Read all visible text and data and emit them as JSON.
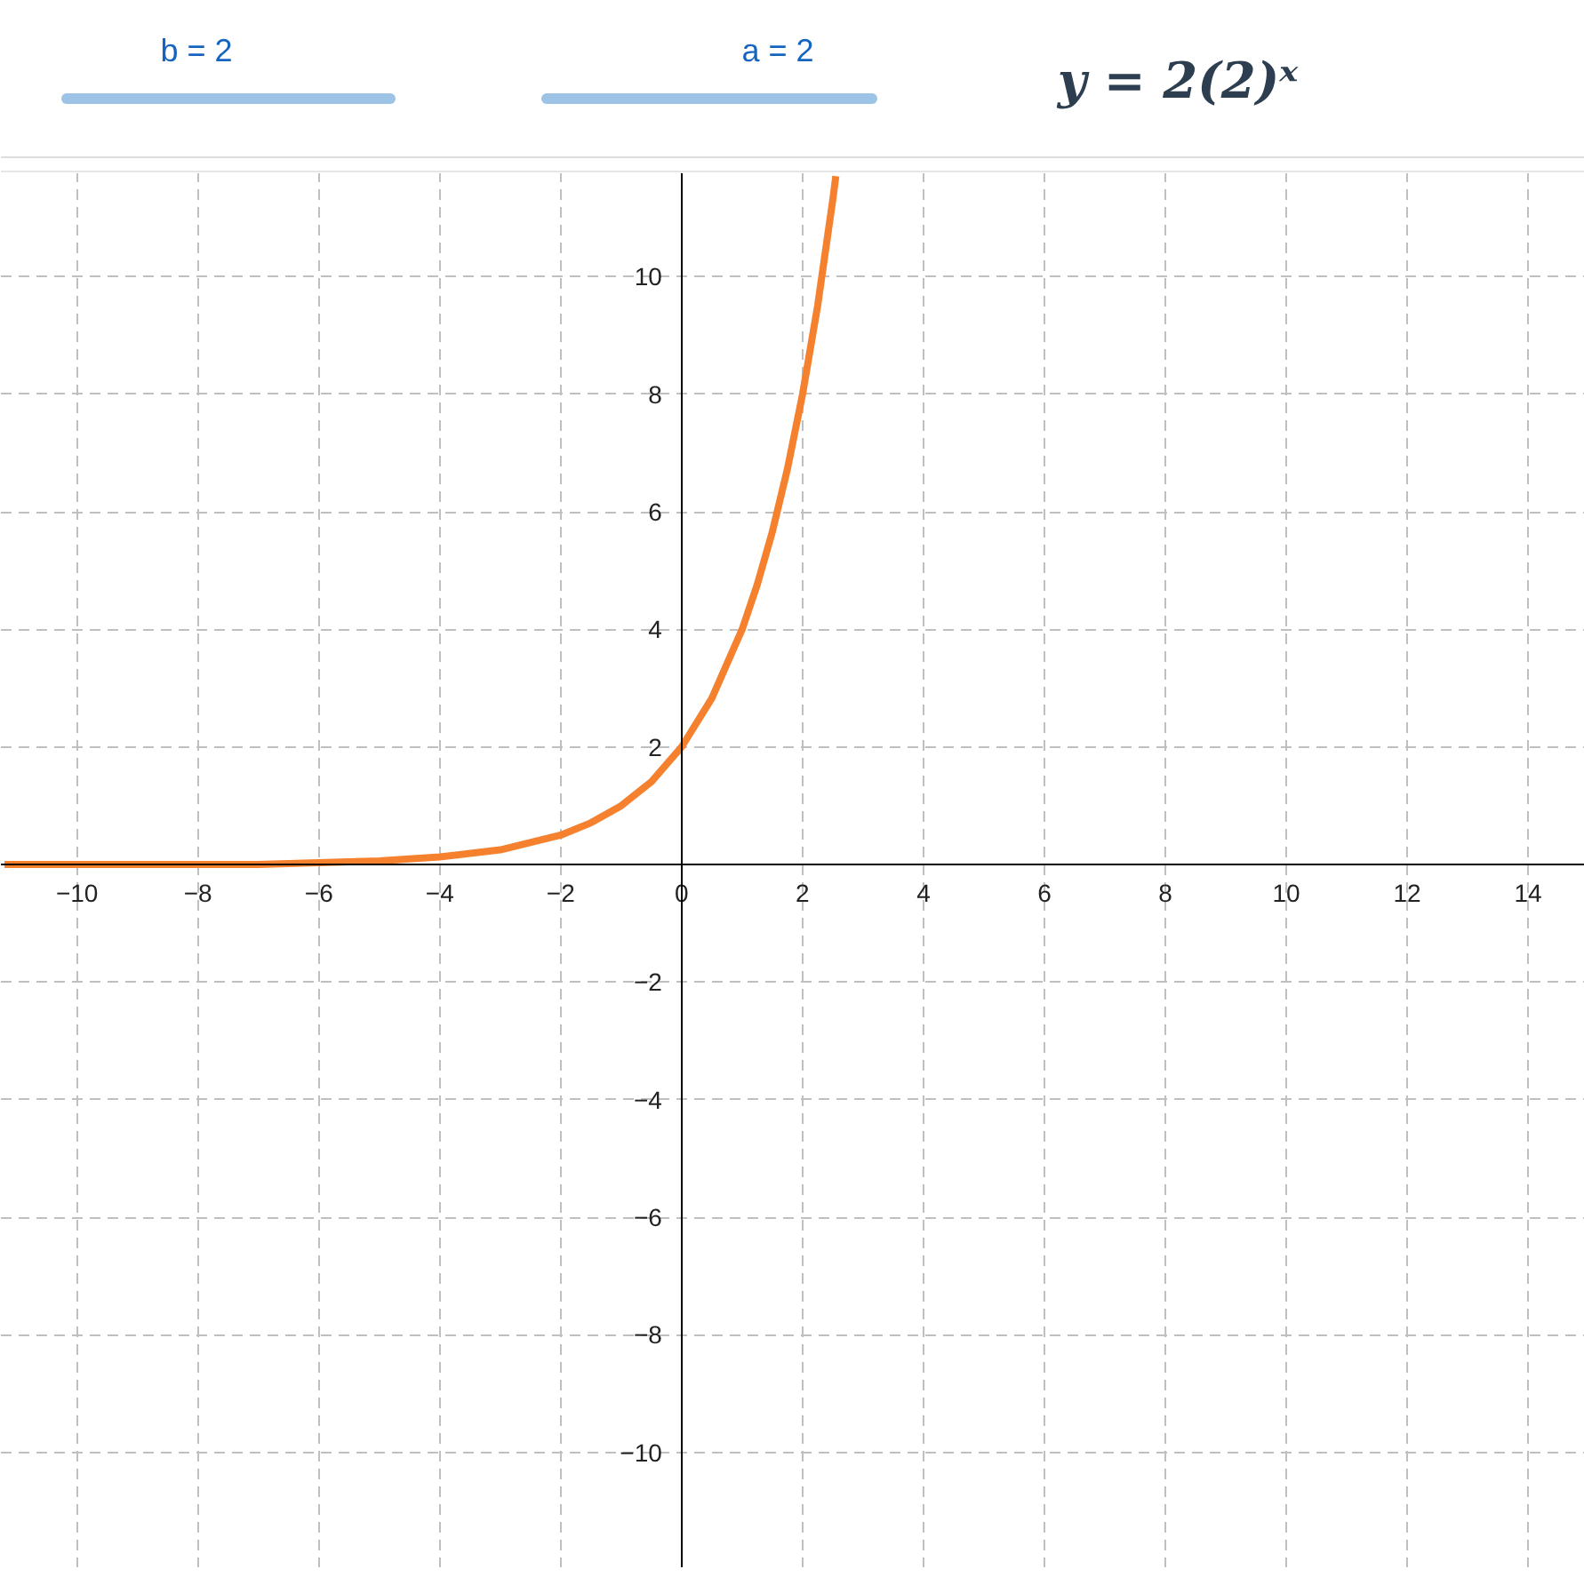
{
  "chart_data": {
    "type": "line",
    "title": "y = 2(2)ˣ",
    "annotations": [
      "b = 2",
      "a = 2"
    ],
    "x": [
      -11.2,
      -10,
      -9,
      -8,
      -7,
      -6,
      -5,
      -4,
      -3,
      -2,
      -1.5,
      -1,
      -0.5,
      0,
      0.5,
      1,
      1.25,
      1.5,
      1.75,
      2,
      2.25,
      2.5,
      2.55
    ],
    "series": [
      {
        "color": "#f5812f",
        "values": [
          0,
          0,
          0,
          0,
          0,
          0.03,
          0.06,
          0.13,
          0.25,
          0.5,
          0.71,
          1,
          1.41,
          2,
          2.83,
          4,
          4.76,
          5.66,
          6.73,
          8,
          9.51,
          11.31,
          11.71
        ]
      }
    ],
    "xlim": [
      -11.26,
      14.94
    ],
    "ylim": [
      -11.97,
      11.76
    ],
    "xticks": [
      {
        "value": -10,
        "label": "−10"
      },
      {
        "value": -8,
        "label": "−8"
      },
      {
        "value": -6,
        "label": "−6"
      },
      {
        "value": -4,
        "label": "−4"
      },
      {
        "value": -2,
        "label": "−2"
      },
      0,
      2,
      4,
      6,
      8,
      10,
      12,
      14
    ],
    "yticks": [
      {
        "value": -10,
        "label": "−10"
      },
      {
        "value": -8,
        "label": "−8"
      },
      {
        "value": -6,
        "label": "−6"
      },
      {
        "value": -4,
        "label": "−4"
      },
      {
        "value": -2,
        "label": "−2"
      },
      2,
      4,
      6,
      8,
      10
    ],
    "grid": true,
    "marker": "none",
    "line_style": "solid"
  }
}
